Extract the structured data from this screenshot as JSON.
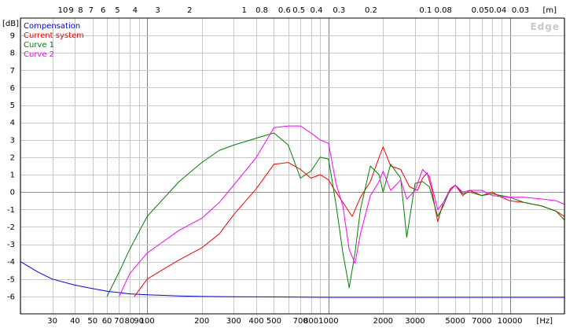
{
  "chart_data": {
    "type": "line",
    "title": "",
    "xlabel": "[Hz]",
    "ylabel": "[dB]",
    "top_axis_label": "[m]",
    "watermark": "Edge",
    "x_scale": "log",
    "xlim": [
      20,
      20000
    ],
    "ylim": [
      -7,
      10
    ],
    "grid": true,
    "legend_position": "top-left",
    "x_tick_labels": [
      "30",
      "40",
      "50",
      "60",
      "70",
      "80",
      "100",
      "200",
      "300",
      "400",
      "500",
      "800",
      "1000",
      "2000",
      "3000",
      "5000",
      "7000",
      "10000"
    ],
    "x_ticks": [
      30,
      40,
      50,
      60,
      70,
      80,
      100,
      200,
      300,
      400,
      500,
      800,
      1000,
      2000,
      3000,
      5000,
      7000,
      10000
    ],
    "x_minor_labeled": [
      90,
      700
    ],
    "x_minor_label_text": [
      "90",
      "700"
    ],
    "y_ticks": [
      9,
      8,
      7,
      6,
      5,
      4,
      3,
      2,
      1,
      0,
      -1,
      -2,
      -3,
      -4,
      -5,
      -6
    ],
    "y_tick_labels": [
      "9",
      "8",
      "7",
      "6",
      "5",
      "4",
      "3",
      "2",
      "1",
      "0",
      "-1",
      "-2",
      "-3",
      "-4",
      "-5",
      "-6"
    ],
    "top_ticks_m": [
      10,
      9,
      8,
      7,
      6,
      5,
      4,
      3,
      2,
      1,
      0.8,
      0.6,
      0.5,
      0.4,
      0.3,
      0.2,
      0.1,
      0.08,
      0.05,
      0.04,
      0.03
    ],
    "top_tick_labels": [
      "10",
      "9",
      "8",
      "7",
      "6",
      "5",
      "4",
      "3",
      "2",
      "1",
      "0.8",
      "0.6",
      "0.5",
      "0.4",
      "0.3",
      "0.2",
      "0.1",
      "0.08",
      "0.05",
      "0.04",
      "0.03"
    ],
    "series": [
      {
        "name": "Compensation",
        "color": "#0000ff",
        "x": [
          20,
          25,
          30,
          40,
          50,
          60,
          70,
          80,
          100,
          150,
          200,
          300,
          500,
          1000,
          5000,
          20000
        ],
        "y": [
          -4.0,
          -4.6,
          -5.0,
          -5.35,
          -5.55,
          -5.7,
          -5.78,
          -5.85,
          -5.9,
          -5.97,
          -6.0,
          -6.02,
          -6.03,
          -6.05,
          -6.05,
          -6.05
        ]
      },
      {
        "name": "Current system",
        "color": "#ff0000",
        "x": [
          85,
          100,
          120,
          150,
          200,
          250,
          300,
          400,
          500,
          600,
          700,
          800,
          900,
          1000,
          1100,
          1200,
          1350,
          1500,
          1700,
          1900,
          2000,
          2200,
          2500,
          2800,
          3100,
          3300,
          3500,
          3700,
          4000,
          4300,
          4700,
          5000,
          5500,
          6000,
          7000,
          8000,
          9000,
          10000,
          12000,
          15000,
          18000,
          20000
        ],
        "y": [
          -6.0,
          -5.0,
          -4.5,
          -3.9,
          -3.2,
          -2.4,
          -1.3,
          0.2,
          1.6,
          1.7,
          1.3,
          0.8,
          1.0,
          0.7,
          0.0,
          -0.6,
          -1.4,
          -0.3,
          0.6,
          2.0,
          2.6,
          1.5,
          1.3,
          0.3,
          0.1,
          0.8,
          1.1,
          0.2,
          -1.7,
          -0.6,
          0.1,
          0.4,
          -0.2,
          0.1,
          -0.2,
          0.0,
          -0.3,
          -0.5,
          -0.6,
          -0.8,
          -1.1,
          -1.4
        ]
      },
      {
        "name": "Curve 1",
        "color": "#008000",
        "x": [
          60,
          70,
          80,
          100,
          150,
          200,
          250,
          300,
          400,
          500,
          600,
          700,
          800,
          900,
          1000,
          1100,
          1200,
          1300,
          1400,
          1500,
          1700,
          1900,
          2000,
          2200,
          2500,
          2700,
          3000,
          3300,
          3600,
          4000,
          4300,
          4700,
          5000,
          5500,
          6000,
          7000,
          8000,
          10000,
          12000,
          15000,
          18000,
          20000
        ],
        "y": [
          -6.0,
          -4.6,
          -3.3,
          -1.4,
          0.6,
          1.7,
          2.4,
          2.7,
          3.1,
          3.4,
          2.7,
          0.8,
          1.2,
          2.0,
          1.9,
          -0.7,
          -3.5,
          -5.5,
          -3.5,
          -1.0,
          1.5,
          1.0,
          0.0,
          1.6,
          0.8,
          -2.6,
          0.5,
          0.6,
          0.3,
          -1.4,
          -0.8,
          0.2,
          0.4,
          -0.1,
          0.0,
          -0.2,
          -0.1,
          -0.3,
          -0.6,
          -0.8,
          -1.1,
          -1.6
        ]
      },
      {
        "name": "Curve 2",
        "color": "#ff00ff",
        "x": [
          70,
          80,
          100,
          150,
          200,
          250,
          300,
          400,
          500,
          600,
          700,
          800,
          900,
          1000,
          1100,
          1200,
          1300,
          1400,
          1500,
          1700,
          1900,
          2000,
          2200,
          2500,
          2700,
          3000,
          3300,
          3600,
          4000,
          4300,
          4700,
          5000,
          5500,
          6000,
          7000,
          8000,
          10000,
          12000,
          15000,
          18000,
          20000
        ],
        "y": [
          -6.0,
          -4.7,
          -3.5,
          -2.2,
          -1.5,
          -0.6,
          0.4,
          2.0,
          3.7,
          3.8,
          3.8,
          3.4,
          3.0,
          2.8,
          0.5,
          -0.8,
          -3.3,
          -4.1,
          -2.4,
          -0.2,
          0.6,
          1.2,
          0.1,
          0.7,
          -0.4,
          0.1,
          1.3,
          0.9,
          -1.0,
          -0.6,
          0.2,
          0.4,
          0.0,
          0.1,
          0.1,
          -0.2,
          -0.3,
          -0.3,
          -0.4,
          -0.5,
          -0.7
        ]
      }
    ]
  }
}
